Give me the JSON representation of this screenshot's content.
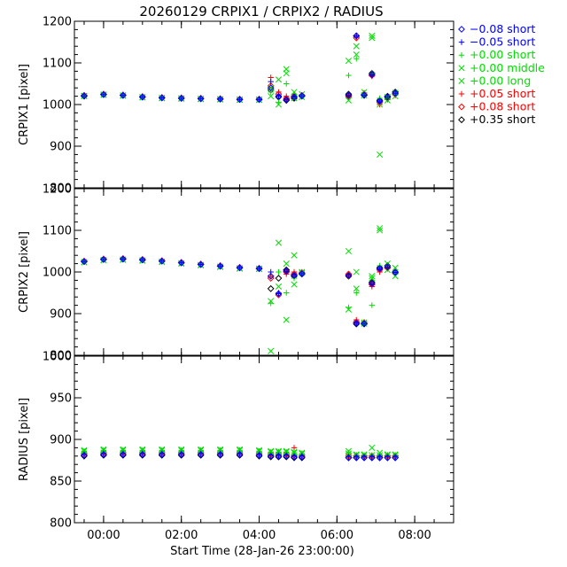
{
  "chart_data": {
    "type": "scatter",
    "title": "20260129 CRPIX1 / CRPIX2 / RADIUS",
    "xlabel": "Start Time (28-Jan-26 23:00:00)",
    "x_units": "hours since 28-Jan-26 23:00:00",
    "xlim": [
      0.25,
      10.0
    ],
    "x_ticks": [
      1,
      3,
      5,
      7,
      9
    ],
    "x_tick_labels": [
      "00:00",
      "02:00",
      "04:00",
      "06:00",
      "08:00"
    ],
    "panels": [
      {
        "name": "crpix1",
        "ylabel": "CRPIX1 [pixel]",
        "ylim": [
          800,
          1200
        ],
        "y_ticks": [
          800,
          900,
          1000,
          1100,
          1200
        ],
        "y_tick_labels": [
          "800",
          "900",
          "1000",
          "1100",
          "1200"
        ]
      },
      {
        "name": "crpix2",
        "ylabel": "CRPIX2 [pixel]",
        "ylim": [
          800,
          1200
        ],
        "y_ticks": [
          800,
          900,
          1000,
          1100,
          1200
        ],
        "y_tick_labels": [
          "800",
          "900",
          "1000",
          "1100",
          "1200"
        ]
      },
      {
        "name": "radius",
        "ylabel": "RADIUS [pixel]",
        "ylim": [
          800,
          1000
        ],
        "y_ticks": [
          800,
          850,
          900,
          950,
          1000
        ],
        "y_tick_labels": [
          "800",
          "850",
          "900",
          "950",
          "1000"
        ]
      }
    ],
    "legend": {
      "position": "right",
      "entries": [
        {
          "label": "−0.08 short",
          "symbol": "diamond",
          "color": "#0000ff"
        },
        {
          "label": "−0.05 short",
          "symbol": "plus",
          "color": "#0000ff"
        },
        {
          "label": "+0.00 short",
          "symbol": "plus",
          "color": "#00dd00"
        },
        {
          "label": "+0.00 middle",
          "symbol": "cross",
          "color": "#00dd00"
        },
        {
          "label": "+0.00 long",
          "symbol": "cross",
          "color": "#00dd00"
        },
        {
          "label": "+0.05 short",
          "symbol": "plus",
          "color": "#ff0000"
        },
        {
          "label": "+0.08 short",
          "symbol": "diamond",
          "color": "#ff0000"
        },
        {
          "label": "+0.35 short",
          "symbol": "diamond",
          "color": "#000000"
        }
      ]
    },
    "series": [
      {
        "name": "+0.35 short",
        "color": "#000000",
        "symbol": "diamond",
        "x": [
          0.5,
          1.0,
          1.5,
          2.0,
          2.5,
          3.0,
          3.5,
          4.0,
          4.5,
          5.0,
          5.3,
          5.5,
          5.7,
          5.9,
          6.1,
          7.3,
          7.5,
          7.7,
          7.9,
          8.1,
          8.3,
          8.5
        ],
        "crpix1": [
          1020,
          1024,
          1022,
          1018,
          1016,
          1015,
          1014,
          1013,
          1012,
          1012,
          1035,
          1018,
          1010,
          1015,
          1020,
          1025,
          1165,
          1022,
          1075,
          1010,
          1020,
          1030
        ],
        "crpix2": [
          1025,
          1030,
          1031,
          1029,
          1026,
          1022,
          1018,
          1014,
          1010,
          1008,
          960,
          985,
          1005,
          990,
          995,
          990,
          875,
          875,
          975,
          1010,
          1015,
          1000
        ],
        "radius": [
          880,
          881,
          881,
          881,
          881,
          881,
          881,
          881,
          881,
          880,
          879,
          879,
          879,
          878,
          878,
          878,
          878,
          878,
          878,
          878,
          878,
          878
        ]
      },
      {
        "name": "+0.08 short",
        "color": "#ff0000",
        "symbol": "diamond",
        "x": [
          0.5,
          1.0,
          1.5,
          2.0,
          2.5,
          3.0,
          3.5,
          4.0,
          4.5,
          5.0,
          5.3,
          5.5,
          5.7,
          5.9,
          6.1,
          7.3,
          7.5,
          7.7,
          7.9,
          8.1,
          8.3,
          8.5
        ],
        "crpix1": [
          1022,
          1025,
          1023,
          1019,
          1017,
          1016,
          1015,
          1014,
          1013,
          1013,
          1045,
          1025,
          1015,
          1020,
          1022,
          1020,
          1160,
          1025,
          1070,
          1005,
          1015,
          1025
        ],
        "crpix2": [
          1026,
          1031,
          1032,
          1030,
          1027,
          1023,
          1019,
          1015,
          1011,
          1009,
          985,
          945,
          1000,
          995,
          998,
          995,
          880,
          878,
          970,
          1005,
          1010,
          998
        ],
        "radius": [
          883,
          884,
          884,
          884,
          884,
          884,
          884,
          884,
          884,
          883,
          882,
          882,
          882,
          881,
          881,
          880,
          880,
          880,
          880,
          880,
          880,
          880
        ]
      },
      {
        "name": "+0.05 short",
        "color": "#ff0000",
        "symbol": "plus",
        "x": [
          0.5,
          1.0,
          1.5,
          2.0,
          2.5,
          3.0,
          3.5,
          4.0,
          4.5,
          5.0,
          5.3,
          5.5,
          5.7,
          5.9,
          6.1,
          7.3,
          7.5,
          7.7,
          7.9,
          8.1,
          8.3,
          8.5
        ],
        "crpix1": [
          1023,
          1026,
          1024,
          1020,
          1018,
          1017,
          1016,
          1015,
          1014,
          1014,
          1065,
          1030,
          1020,
          1025,
          1023,
          1018,
          1162,
          1028,
          1068,
          1000,
          1012,
          1022
        ],
        "crpix2": [
          1027,
          1032,
          1033,
          1031,
          1028,
          1024,
          1020,
          1016,
          1012,
          1010,
          990,
          950,
          995,
          1000,
          1000,
          990,
          885,
          880,
          965,
          1000,
          1008,
          995
        ],
        "radius": [
          885,
          886,
          886,
          886,
          886,
          886,
          886,
          886,
          886,
          885,
          884,
          884,
          884,
          890,
          883,
          882,
          881,
          881,
          881,
          881,
          881,
          881
        ]
      },
      {
        "name": "+0.00 long",
        "color": "#00dd00",
        "symbol": "cross",
        "x": [
          0.5,
          1.0,
          1.5,
          2.0,
          2.5,
          3.0,
          3.5,
          4.0,
          4.5,
          5.0,
          5.3,
          5.5,
          5.7,
          5.9,
          6.1,
          7.3,
          7.5,
          7.7,
          7.9,
          8.1,
          8.3,
          8.5
        ],
        "crpix1": [
          1021,
          1024,
          1022,
          1018,
          1016,
          1015,
          1014,
          1013,
          1012,
          1012,
          1040,
          1060,
          1085,
          1030,
          1025,
          1105,
          1140,
          1030,
          1165,
          880,
          1018,
          1028
        ],
        "crpix2": [
          1024,
          1029,
          1030,
          1028,
          1025,
          1021,
          1017,
          1013,
          1009,
          1008,
          930,
          1070,
          885,
          1040,
          998,
          1050,
          960,
          879,
          990,
          1105,
          1020,
          1010
        ],
        "radius": [
          887,
          888,
          888,
          888,
          888,
          888,
          888,
          888,
          888,
          887,
          886,
          886,
          886,
          885,
          884,
          886,
          882,
          882,
          890,
          884,
          882,
          882
        ]
      },
      {
        "name": "+0.00 middle",
        "color": "#00dd00",
        "symbol": "cross",
        "x": [
          0.5,
          1.0,
          1.5,
          2.0,
          2.5,
          3.0,
          3.5,
          4.0,
          4.5,
          5.0,
          5.3,
          5.5,
          5.7,
          5.9,
          6.1,
          7.3,
          7.5,
          7.7,
          7.9,
          8.1,
          8.3,
          8.5
        ],
        "crpix1": [
          1020,
          1023,
          1021,
          1017,
          1015,
          1014,
          1013,
          1012,
          1011,
          1011,
          1020,
          1000,
          1075,
          1015,
          1018,
          1010,
          1120,
          1022,
          1160,
          1000,
          1010,
          1020
        ],
        "crpix2": [
          1023,
          1028,
          1029,
          1027,
          1024,
          1020,
          1016,
          1012,
          1008,
          1007,
          810,
          965,
          1020,
          970,
          1000,
          910,
          1000,
          876,
          985,
          1100,
          1005,
          990
        ],
        "radius": [
          886,
          887,
          887,
          887,
          887,
          887,
          887,
          887,
          887,
          886,
          885,
          885,
          885,
          884,
          883,
          883,
          881,
          881,
          881,
          881,
          881,
          881
        ]
      },
      {
        "name": "+0.00 short",
        "color": "#00dd00",
        "symbol": "plus",
        "x": [
          0.5,
          1.0,
          1.5,
          2.0,
          2.5,
          3.0,
          3.5,
          4.0,
          4.5,
          5.0,
          5.3,
          5.5,
          5.7,
          5.9,
          6.1,
          7.3,
          7.5,
          7.7,
          7.9,
          8.1,
          8.3,
          8.5
        ],
        "crpix1": [
          1022,
          1025,
          1023,
          1019,
          1017,
          1016,
          1015,
          1014,
          1013,
          1013,
          1030,
          1005,
          1050,
          1022,
          1020,
          1070,
          1110,
          1025,
          1075,
          1015,
          1015,
          1025
        ],
        "crpix2": [
          1025,
          1030,
          1031,
          1029,
          1026,
          1022,
          1018,
          1014,
          1010,
          1009,
          925,
          1000,
          950,
          985,
          995,
          915,
          950,
          878,
          920,
          1015,
          1012,
          1000
        ],
        "radius": [
          886,
          887,
          887,
          887,
          887,
          887,
          887,
          887,
          887,
          886,
          885,
          885,
          885,
          884,
          883,
          884,
          881,
          881,
          881,
          881,
          881,
          881
        ]
      },
      {
        "name": "−0.05 short",
        "color": "#0000ff",
        "symbol": "plus",
        "x": [
          0.5,
          1.0,
          1.5,
          2.0,
          2.5,
          3.0,
          3.5,
          4.0,
          4.5,
          5.0,
          5.3,
          5.5,
          5.7,
          5.9,
          6.1,
          7.3,
          7.5,
          7.7,
          7.9,
          8.1,
          8.3,
          8.5
        ],
        "crpix1": [
          1021,
          1024,
          1022,
          1018,
          1016,
          1015,
          1014,
          1013,
          1012,
          1012,
          1055,
          1020,
          1012,
          1018,
          1021,
          1022,
          1165,
          1023,
          1072,
          1008,
          1018,
          1027
        ],
        "crpix2": [
          1025,
          1030,
          1031,
          1029,
          1026,
          1022,
          1018,
          1014,
          1010,
          1008,
          1000,
          948,
          1002,
          992,
          996,
          992,
          877,
          876,
          972,
          1008,
          1012,
          999
        ],
        "radius": [
          882,
          883,
          883,
          883,
          883,
          883,
          883,
          883,
          883,
          882,
          881,
          881,
          881,
          880,
          880,
          879,
          879,
          879,
          879,
          879,
          879,
          879
        ]
      },
      {
        "name": "−0.08 short",
        "color": "#0000ff",
        "symbol": "diamond",
        "x": [
          0.5,
          1.0,
          1.5,
          2.0,
          2.5,
          3.0,
          3.5,
          4.0,
          4.5,
          5.0,
          5.3,
          5.5,
          5.7,
          5.9,
          6.1,
          7.3,
          7.5,
          7.7,
          7.9,
          8.1,
          8.3,
          8.5
        ],
        "crpix1": [
          1021,
          1024,
          1022,
          1018,
          1016,
          1015,
          1014,
          1013,
          1012,
          1012,
          1040,
          1020,
          1012,
          1018,
          1021,
          1022,
          1165,
          1023,
          1072,
          1008,
          1018,
          1027
        ],
        "crpix2": [
          1025,
          1030,
          1031,
          1029,
          1026,
          1022,
          1018,
          1014,
          1010,
          1008,
          990,
          948,
          1002,
          992,
          996,
          992,
          877,
          876,
          972,
          1008,
          1012,
          999
        ],
        "radius": [
          881,
          882,
          882,
          882,
          882,
          882,
          882,
          882,
          882,
          881,
          880,
          880,
          880,
          879,
          879,
          878,
          878,
          878,
          878,
          878,
          878,
          878
        ]
      }
    ]
  }
}
